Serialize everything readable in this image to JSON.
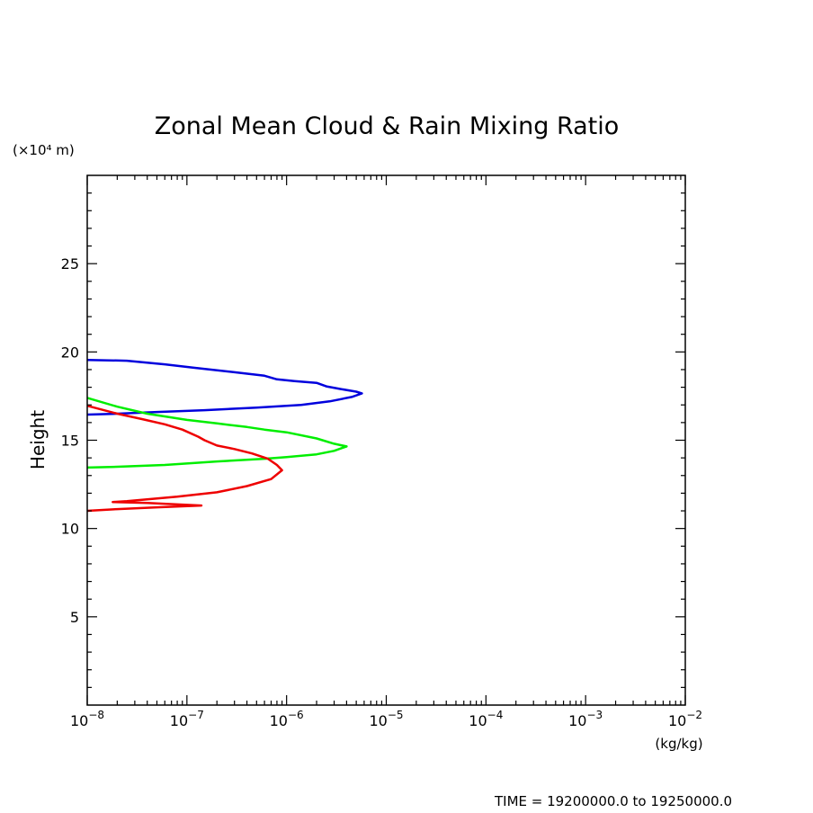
{
  "chart_data": {
    "type": "line",
    "title": "Zonal Mean Cloud & Rain Mixing Ratio",
    "ylabel": "Height",
    "y_unit": "(×10⁴ m)",
    "x_unit": "(kg/kg)",
    "xscale": "log",
    "xlim": [
      1e-08,
      0.01
    ],
    "ylim": [
      0,
      30
    ],
    "grid": false,
    "x_ticks": [
      {
        "base": "10",
        "exp": "−8"
      },
      {
        "base": "10",
        "exp": "−7"
      },
      {
        "base": "10",
        "exp": "−6"
      },
      {
        "base": "10",
        "exp": "−5"
      },
      {
        "base": "10",
        "exp": "−4"
      },
      {
        "base": "10",
        "exp": "−3"
      },
      {
        "base": "10",
        "exp": "−2"
      }
    ],
    "y_ticks": [
      "5",
      "10",
      "15",
      "20",
      "25"
    ],
    "y_tick_values": [
      5,
      10,
      15,
      20,
      25
    ],
    "time_label": "TIME = 19200000.0 to 19250000.0",
    "series": [
      {
        "color": "#0000dd",
        "points": [
          [
            1e-08,
            19.55
          ],
          [
            2.5e-08,
            19.5
          ],
          [
            6e-08,
            19.3
          ],
          [
            1.2e-07,
            19.1
          ],
          [
            3e-07,
            18.85
          ],
          [
            6e-07,
            18.65
          ],
          [
            8e-07,
            18.45
          ],
          [
            1.2e-06,
            18.35
          ],
          [
            2e-06,
            18.25
          ],
          [
            2.5e-06,
            18.05
          ],
          [
            3.5e-06,
            17.9
          ],
          [
            5e-06,
            17.75
          ],
          [
            5.7e-06,
            17.65
          ],
          [
            4.5e-06,
            17.45
          ],
          [
            2.7e-06,
            17.2
          ],
          [
            1.4e-06,
            17.0
          ],
          [
            5e-07,
            16.85
          ],
          [
            1.5e-07,
            16.7
          ],
          [
            5e-08,
            16.6
          ],
          [
            2e-08,
            16.5
          ],
          [
            1e-08,
            16.45
          ]
        ]
      },
      {
        "color": "#00ee00",
        "points": [
          [
            1e-08,
            17.4
          ],
          [
            2e-08,
            16.9
          ],
          [
            4e-08,
            16.5
          ],
          [
            1e-07,
            16.15
          ],
          [
            2e-07,
            15.95
          ],
          [
            4e-07,
            15.75
          ],
          [
            6e-07,
            15.6
          ],
          [
            1e-06,
            15.45
          ],
          [
            2e-06,
            15.1
          ],
          [
            3e-06,
            14.8
          ],
          [
            4e-06,
            14.65
          ],
          [
            3e-06,
            14.4
          ],
          [
            2e-06,
            14.2
          ],
          [
            1e-06,
            14.05
          ],
          [
            6e-07,
            13.95
          ],
          [
            2e-07,
            13.8
          ],
          [
            6e-08,
            13.6
          ],
          [
            2e-08,
            13.5
          ],
          [
            1e-08,
            13.45
          ]
        ]
      },
      {
        "color": "#ee0000",
        "points": [
          [
            1e-08,
            16.95
          ],
          [
            2e-08,
            16.5
          ],
          [
            3.5e-08,
            16.2
          ],
          [
            6e-08,
            15.9
          ],
          [
            9e-08,
            15.6
          ],
          [
            1.3e-07,
            15.2
          ],
          [
            1.5e-07,
            15.0
          ],
          [
            2e-07,
            14.7
          ],
          [
            3e-07,
            14.5
          ],
          [
            4.5e-07,
            14.25
          ],
          [
            6.5e-07,
            13.95
          ],
          [
            8e-07,
            13.6
          ],
          [
            9e-07,
            13.3
          ],
          [
            7e-07,
            12.8
          ],
          [
            4e-07,
            12.4
          ],
          [
            2e-07,
            12.05
          ],
          [
            8e-08,
            11.8
          ],
          [
            2.5e-08,
            11.55
          ],
          [
            1.8e-08,
            11.5
          ],
          [
            4e-08,
            11.45
          ],
          [
            1.4e-07,
            11.3
          ],
          [
            5e-08,
            11.2
          ],
          [
            2e-08,
            11.1
          ],
          [
            1e-08,
            11.0
          ]
        ]
      }
    ]
  }
}
